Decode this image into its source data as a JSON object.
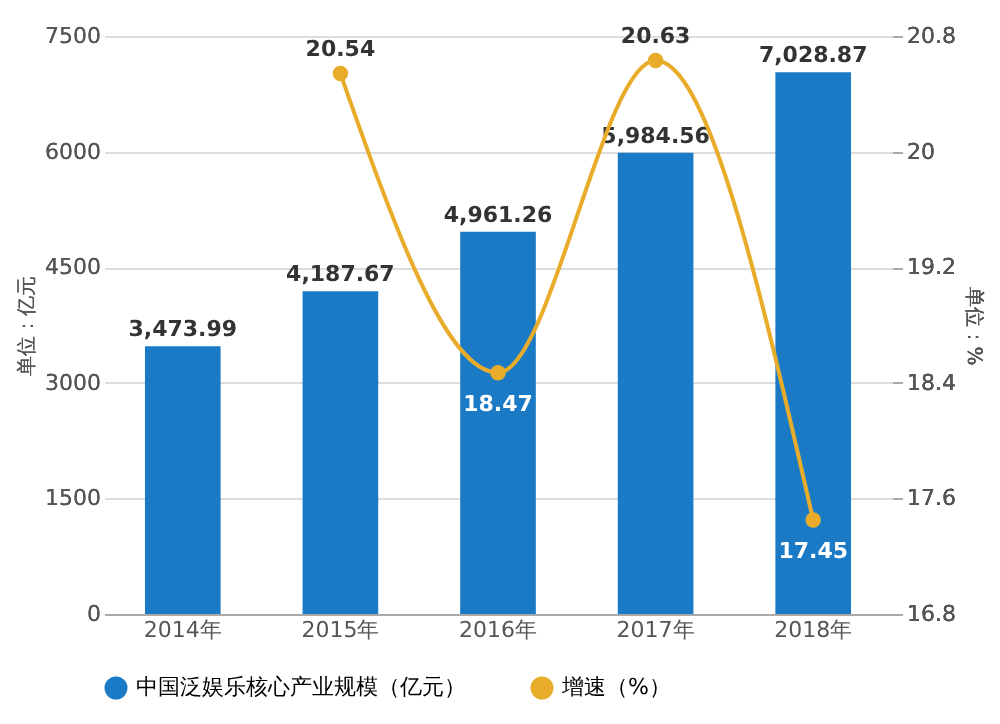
{
  "chart_data": {
    "type": "bar",
    "categories": [
      "2014年",
      "2015年",
      "2016年",
      "2017年",
      "2018年"
    ],
    "ylabel": "单位：亿元",
    "y2label": "单位：%",
    "series": [
      {
        "name": "中国泛娱乐核心产业规模（亿元）",
        "color": "#1a7ac6",
        "values": [
          3473.99,
          4187.67,
          4961.26,
          5984.56,
          7028.87
        ],
        "value_labels": [
          "3,473.99",
          "4,187.67",
          "4,961.26",
          "5,984.56",
          "7,028.87"
        ]
      },
      {
        "name": "增速（%）",
        "type": "line",
        "axis": "y2",
        "color": "#e8ac2a",
        "values": [
          null,
          20.54,
          18.47,
          20.63,
          17.45
        ],
        "value_labels": [
          null,
          "20.54",
          "18.47",
          "20.63",
          "17.45"
        ]
      }
    ],
    "ylim": [
      0,
      7500
    ],
    "yticks": [
      0,
      1500,
      3000,
      4500,
      6000,
      7500
    ],
    "y2lim": [
      16.8,
      20.8
    ],
    "y2ticks": [
      16.8,
      17.6,
      18.4,
      19.2,
      20,
      20.8
    ],
    "grid": "y",
    "legend": "bottom",
    "marker": "circle",
    "line_style": "solid"
  }
}
